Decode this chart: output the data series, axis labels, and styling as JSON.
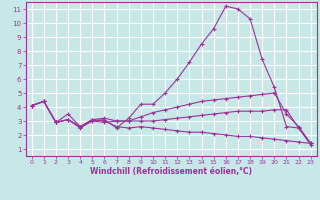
{
  "bg_color": "#c8e8e8",
  "grid_color": "#ffffff",
  "line_color": "#993399",
  "xlabel": "Windchill (Refroidissement éolien,°C)",
  "xlabel_color": "#993399",
  "tick_color": "#993399",
  "xlim": [
    -0.5,
    23.5
  ],
  "ylim": [
    0.5,
    11.5
  ],
  "xticks": [
    0,
    1,
    2,
    3,
    4,
    5,
    6,
    7,
    8,
    9,
    10,
    11,
    12,
    13,
    14,
    15,
    16,
    17,
    18,
    19,
    20,
    21,
    22,
    23
  ],
  "yticks": [
    1,
    2,
    3,
    4,
    5,
    6,
    7,
    8,
    9,
    10,
    11
  ],
  "line1_x": [
    0,
    1,
    2,
    3,
    4,
    5,
    6,
    7,
    8,
    9,
    10,
    11,
    12,
    13,
    14,
    15,
    16,
    17,
    18,
    19,
    20,
    21,
    22,
    23
  ],
  "line1_y": [
    4.1,
    4.4,
    2.9,
    3.5,
    2.6,
    3.0,
    3.1,
    2.5,
    3.2,
    4.2,
    4.2,
    5.0,
    6.0,
    7.2,
    8.5,
    9.6,
    11.2,
    11.0,
    10.3,
    7.4,
    5.4,
    2.6,
    2.5,
    1.3
  ],
  "line2_x": [
    0,
    1,
    2,
    3,
    4,
    5,
    6,
    7,
    8,
    9,
    10,
    11,
    12,
    13,
    14,
    15,
    16,
    17,
    18,
    19,
    20,
    21,
    22,
    23
  ],
  "line2_y": [
    4.1,
    4.4,
    2.9,
    3.1,
    2.5,
    3.0,
    2.9,
    3.0,
    3.0,
    3.0,
    3.0,
    3.1,
    3.2,
    3.3,
    3.4,
    3.5,
    3.6,
    3.7,
    3.7,
    3.7,
    3.8,
    3.8,
    2.5,
    1.4
  ],
  "line3_x": [
    0,
    1,
    2,
    3,
    4,
    5,
    6,
    7,
    8,
    9,
    10,
    11,
    12,
    13,
    14,
    15,
    16,
    17,
    18,
    19,
    20,
    21,
    22,
    23
  ],
  "line3_y": [
    4.1,
    4.4,
    2.9,
    3.1,
    2.6,
    3.1,
    3.0,
    2.6,
    2.5,
    2.6,
    2.5,
    2.4,
    2.3,
    2.2,
    2.2,
    2.1,
    2.0,
    1.9,
    1.9,
    1.8,
    1.7,
    1.6,
    1.5,
    1.4
  ],
  "line4_x": [
    0,
    1,
    2,
    3,
    4,
    5,
    6,
    7,
    8,
    9,
    10,
    11,
    12,
    13,
    14,
    15,
    16,
    17,
    18,
    19,
    20,
    21,
    22,
    23
  ],
  "line4_y": [
    4.1,
    4.4,
    2.9,
    3.1,
    2.6,
    3.1,
    3.2,
    3.0,
    3.0,
    3.3,
    3.6,
    3.8,
    4.0,
    4.2,
    4.4,
    4.5,
    4.6,
    4.7,
    4.8,
    4.9,
    5.0,
    3.5,
    2.6,
    1.4
  ]
}
